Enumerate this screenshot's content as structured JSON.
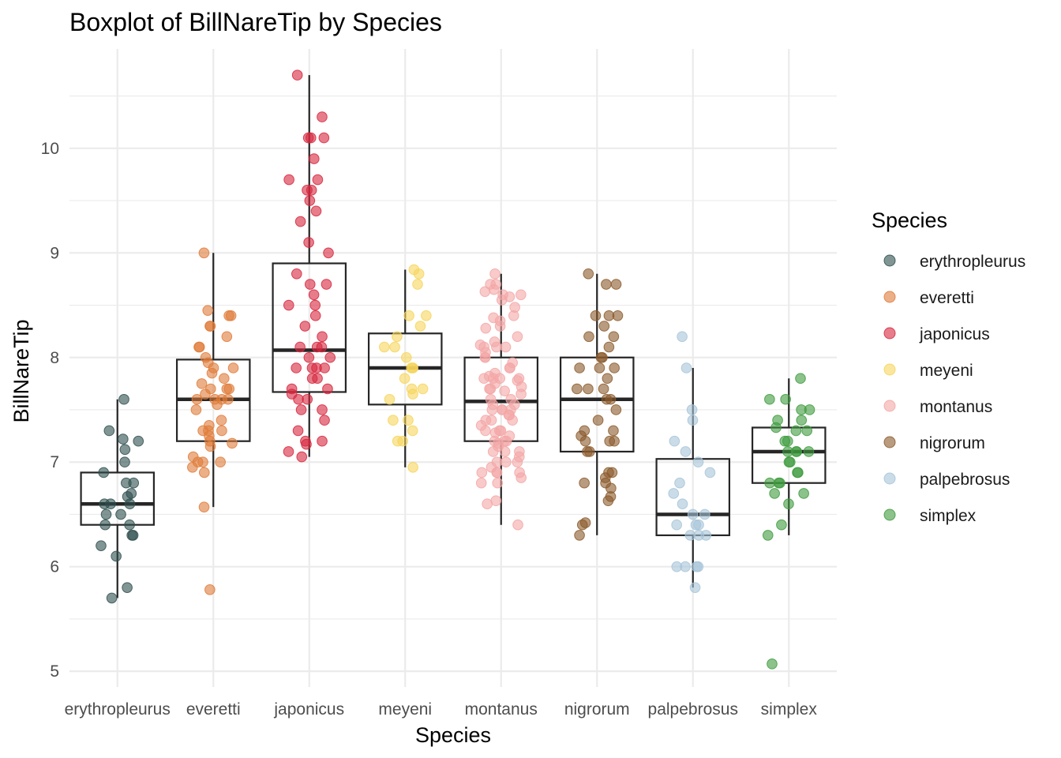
{
  "chart_data": {
    "type": "box",
    "title": "Boxplot of BillNareTip by Species",
    "xlabel": "Species",
    "ylabel": "BillNareTip",
    "ylim": [
      4.85,
      10.95
    ],
    "yticks": [
      5,
      6,
      7,
      8,
      9,
      10
    ],
    "grid": true,
    "legend": {
      "title": "Species",
      "position": "right"
    },
    "categories": [
      "erythropleurus",
      "everetti",
      "japonicus",
      "meyeni",
      "montanus",
      "nigrorum",
      "palpebrosus",
      "simplex"
    ],
    "series": [
      {
        "name": "erythropleurus",
        "color": "#2F4F4F",
        "box": {
          "q1": 6.4,
          "median": 6.6,
          "q3": 6.9,
          "whisker_low": 5.7,
          "whisker_high": 7.6
        },
        "points": [
          7.6,
          7.3,
          7.22,
          7.2,
          7.12,
          7.0,
          6.9,
          6.8,
          6.8,
          6.7,
          6.67,
          6.6,
          6.6,
          6.6,
          6.5,
          6.5,
          6.4,
          6.4,
          6.3,
          6.3,
          6.2,
          6.1,
          5.8,
          5.7
        ]
      },
      {
        "name": "everetti",
        "color": "#E07B39",
        "box": {
          "q1": 7.2,
          "median": 7.6,
          "q3": 7.98,
          "whisker_low": 6.57,
          "whisker_high": 9.0
        },
        "points": [
          9.0,
          8.45,
          8.4,
          8.4,
          8.3,
          8.3,
          8.2,
          8.1,
          8.1,
          8.0,
          7.95,
          7.9,
          7.9,
          7.85,
          7.8,
          7.75,
          7.7,
          7.7,
          7.7,
          7.65,
          7.6,
          7.6,
          7.6,
          7.6,
          7.55,
          7.5,
          7.4,
          7.35,
          7.3,
          7.3,
          7.3,
          7.25,
          7.2,
          7.18,
          7.15,
          7.05,
          7.0,
          7.0,
          7.0,
          6.95,
          6.9,
          6.57,
          5.78
        ]
      },
      {
        "name": "japonicus",
        "color": "#D7263D",
        "box": {
          "q1": 7.67,
          "median": 8.07,
          "q3": 8.9,
          "whisker_low": 7.05,
          "whisker_high": 10.7
        },
        "points": [
          10.7,
          10.3,
          10.1,
          10.1,
          10.1,
          9.9,
          9.7,
          9.7,
          9.6,
          9.6,
          9.5,
          9.4,
          9.3,
          9.1,
          9.0,
          8.8,
          8.7,
          8.7,
          8.6,
          8.5,
          8.5,
          8.4,
          8.3,
          8.2,
          8.1,
          8.1,
          8.1,
          8.0,
          8.0,
          7.9,
          7.9,
          7.9,
          7.9,
          7.8,
          7.8,
          7.7,
          7.7,
          7.65,
          7.6,
          7.6,
          7.5,
          7.5,
          7.4,
          7.3,
          7.2,
          7.2,
          7.17,
          7.1,
          7.05
        ]
      },
      {
        "name": "meyeni",
        "color": "#F6D55C",
        "box": {
          "q1": 7.55,
          "median": 7.9,
          "q3": 8.23,
          "whisker_low": 6.95,
          "whisker_high": 8.84
        },
        "points": [
          8.84,
          8.8,
          8.7,
          8.4,
          8.4,
          8.3,
          8.2,
          8.1,
          8.1,
          8.0,
          7.9,
          7.9,
          7.9,
          7.8,
          7.7,
          7.7,
          7.65,
          7.6,
          7.4,
          7.4,
          7.3,
          7.2,
          7.2,
          6.95
        ]
      },
      {
        "name": "montanus",
        "color": "#F4A6A6",
        "box": {
          "q1": 7.2,
          "median": 7.58,
          "q3": 8.0,
          "whisker_low": 6.4,
          "whisker_high": 8.8
        },
        "points": [
          8.8,
          8.7,
          8.7,
          8.65,
          8.63,
          8.6,
          8.6,
          8.58,
          8.55,
          8.48,
          8.4,
          8.38,
          8.35,
          8.3,
          8.28,
          8.2,
          8.15,
          8.12,
          8.1,
          8.1,
          8.1,
          8.05,
          8.0,
          8.0,
          7.95,
          7.9,
          7.9,
          7.85,
          7.82,
          7.8,
          7.8,
          7.8,
          7.8,
          7.78,
          7.75,
          7.72,
          7.7,
          7.7,
          7.68,
          7.65,
          7.6,
          7.6,
          7.55,
          7.55,
          7.5,
          7.5,
          7.5,
          7.5,
          7.45,
          7.45,
          7.4,
          7.4,
          7.4,
          7.35,
          7.3,
          7.3,
          7.3,
          7.28,
          7.25,
          7.2,
          7.2,
          7.2,
          7.18,
          7.15,
          7.1,
          7.1,
          7.1,
          7.05,
          7.0,
          7.0,
          7.0,
          6.95,
          6.9,
          6.9,
          6.9,
          6.9,
          6.85,
          6.8,
          6.8,
          6.63,
          6.6,
          6.4
        ]
      },
      {
        "name": "nigrorum",
        "color": "#8B5A2B",
        "box": {
          "q1": 7.1,
          "median": 7.6,
          "q3": 8.0,
          "whisker_low": 6.3,
          "whisker_high": 8.8
        },
        "points": [
          8.8,
          8.7,
          8.7,
          8.4,
          8.4,
          8.4,
          8.3,
          8.2,
          8.2,
          8.1,
          8.0,
          8.0,
          7.9,
          7.9,
          7.9,
          7.8,
          7.7,
          7.7,
          7.7,
          7.6,
          7.6,
          7.5,
          7.4,
          7.3,
          7.3,
          7.25,
          7.2,
          7.2,
          7.2,
          7.1,
          7.1,
          6.9,
          6.9,
          6.85,
          6.8,
          6.8,
          6.75,
          6.67,
          6.63,
          6.42,
          6.4,
          6.3
        ]
      },
      {
        "name": "palpebrosus",
        "color": "#A7C4D8",
        "box": {
          "q1": 6.3,
          "median": 6.5,
          "q3": 7.03,
          "whisker_low": 5.8,
          "whisker_high": 7.9
        },
        "points": [
          8.2,
          7.9,
          7.5,
          7.4,
          7.2,
          7.1,
          7.0,
          6.9,
          6.8,
          6.7,
          6.6,
          6.5,
          6.5,
          6.4,
          6.4,
          6.4,
          6.3,
          6.3,
          6.3,
          6.0,
          6.0,
          6.0,
          6.0,
          5.8
        ]
      },
      {
        "name": "simplex",
        "color": "#3E9B3E",
        "box": {
          "q1": 6.8,
          "median": 7.1,
          "q3": 7.33,
          "whisker_low": 6.3,
          "whisker_high": 7.8
        },
        "points": [
          7.8,
          7.6,
          7.6,
          7.5,
          7.5,
          7.4,
          7.4,
          7.33,
          7.3,
          7.3,
          7.2,
          7.2,
          7.1,
          7.1,
          7.1,
          7.1,
          7.0,
          7.0,
          6.9,
          6.9,
          6.8,
          6.8,
          6.8,
          6.7,
          6.7,
          6.6,
          6.4,
          6.3,
          5.07
        ]
      }
    ]
  }
}
